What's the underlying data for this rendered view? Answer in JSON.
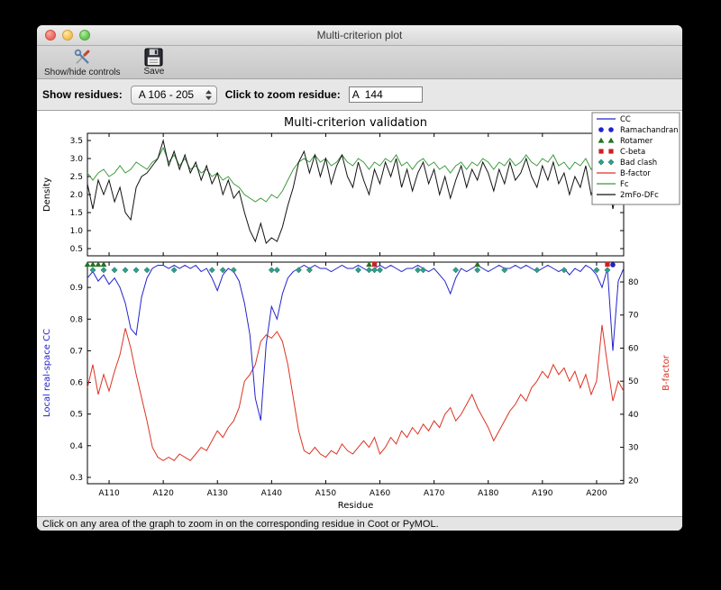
{
  "window": {
    "title": "Multi-criterion plot"
  },
  "toolbar": {
    "show_hide_label": "Show/hide controls",
    "save_label": "Save"
  },
  "controls": {
    "show_residues_label": "Show residues:",
    "residue_range": "A 106 - 205",
    "zoom_label": "Click to zoom residue:",
    "zoom_value": "A  144"
  },
  "status": "Click on any area of the graph to zoom in on the corresponding residue in Coot or PyMOL.",
  "icons": {
    "show_hide": "tools-icon",
    "save": "floppy-disk-icon",
    "combo": "stepper-arrows-icon"
  },
  "chart_data": {
    "type": "line",
    "title": "Multi-criterion validation",
    "xlabel": "Residue",
    "x_range": [
      106,
      205
    ],
    "x_ticks": [
      "A110",
      "A120",
      "A130",
      "A140",
      "A150",
      "A160",
      "A170",
      "A180",
      "A190",
      "A200"
    ],
    "x_tick_values": [
      110,
      120,
      130,
      140,
      150,
      160,
      170,
      180,
      190,
      200
    ],
    "top_panel": {
      "ylabel": "Density",
      "ylim": [
        0.3,
        3.7
      ],
      "yticks": [
        0.5,
        1.0,
        1.5,
        2.0,
        2.5,
        3.0,
        3.5
      ],
      "series": [
        {
          "name": "Fc",
          "color": "#3c9a3c",
          "values": [
            2.6,
            2.4,
            2.6,
            2.7,
            2.5,
            2.6,
            2.8,
            2.6,
            2.7,
            2.9,
            2.8,
            2.7,
            2.9,
            3.0,
            3.3,
            2.9,
            3.1,
            2.8,
            3.0,
            2.7,
            2.8,
            2.6,
            2.7,
            2.5,
            2.6,
            2.4,
            2.5,
            2.3,
            2.2,
            2.0,
            1.9,
            1.8,
            1.9,
            1.8,
            2.0,
            1.9,
            2.1,
            2.4,
            2.7,
            2.9,
            3.0,
            2.9,
            3.1,
            2.9,
            3.0,
            2.8,
            2.9,
            3.1,
            2.9,
            2.8,
            3.0,
            2.9,
            2.7,
            2.9,
            2.8,
            3.0,
            2.9,
            3.1,
            2.8,
            2.9,
            2.7,
            2.9,
            3.0,
            2.8,
            2.9,
            2.7,
            2.8,
            2.6,
            2.8,
            2.9,
            2.7,
            2.9,
            2.8,
            3.0,
            2.9,
            2.7,
            2.9,
            2.8,
            3.0,
            2.8,
            2.9,
            3.1,
            2.9,
            2.8,
            3.0,
            2.9,
            3.1,
            2.8,
            2.9,
            2.7,
            2.9,
            2.8,
            3.0,
            2.7,
            2.9,
            2.8,
            3.3,
            2.6,
            2.9,
            3.0
          ]
        },
        {
          "name": "2mFo-DFc",
          "color": "#111111",
          "values": [
            2.3,
            1.6,
            2.4,
            2.0,
            2.4,
            1.8,
            2.2,
            1.5,
            1.3,
            2.2,
            2.5,
            2.6,
            2.8,
            3.0,
            3.5,
            2.8,
            3.2,
            2.7,
            3.1,
            2.6,
            2.9,
            2.4,
            2.8,
            2.3,
            2.6,
            2.0,
            2.4,
            1.9,
            2.1,
            1.5,
            1.0,
            0.7,
            1.2,
            0.65,
            0.8,
            0.7,
            1.1,
            1.7,
            2.2,
            2.9,
            3.2,
            2.6,
            3.1,
            2.5,
            3.0,
            2.3,
            2.8,
            3.1,
            2.5,
            2.2,
            2.9,
            2.4,
            2.0,
            2.7,
            2.3,
            2.9,
            2.5,
            3.0,
            2.2,
            2.7,
            2.1,
            2.6,
            2.9,
            2.3,
            2.7,
            2.0,
            2.5,
            1.9,
            2.4,
            2.8,
            2.2,
            2.7,
            2.4,
            2.9,
            2.6,
            2.1,
            2.7,
            2.3,
            2.9,
            2.4,
            2.6,
            3.0,
            2.5,
            2.2,
            2.8,
            2.4,
            2.9,
            2.3,
            2.6,
            2.0,
            2.5,
            2.2,
            2.8,
            2.0,
            2.4,
            2.1,
            2.6,
            1.6,
            2.3,
            2.5
          ]
        }
      ]
    },
    "bottom_panel": {
      "left_ylabel": "Local real-space CC",
      "left_color": "#2222cc",
      "left_ylim": [
        0.28,
        0.98
      ],
      "left_yticks": [
        0.3,
        0.4,
        0.5,
        0.6,
        0.7,
        0.8,
        0.9
      ],
      "right_ylabel": "B-factor",
      "right_color": "#dd3322",
      "right_ylim": [
        19,
        86
      ],
      "right_yticks": [
        20,
        30,
        40,
        50,
        60,
        70,
        80
      ],
      "cc_values": [
        0.93,
        0.95,
        0.92,
        0.94,
        0.91,
        0.93,
        0.9,
        0.85,
        0.77,
        0.75,
        0.87,
        0.93,
        0.96,
        0.97,
        0.97,
        0.96,
        0.97,
        0.96,
        0.97,
        0.96,
        0.97,
        0.95,
        0.96,
        0.93,
        0.89,
        0.94,
        0.96,
        0.95,
        0.92,
        0.85,
        0.75,
        0.55,
        0.48,
        0.72,
        0.84,
        0.8,
        0.88,
        0.93,
        0.95,
        0.96,
        0.97,
        0.96,
        0.97,
        0.96,
        0.96,
        0.95,
        0.96,
        0.97,
        0.96,
        0.96,
        0.97,
        0.96,
        0.95,
        0.96,
        0.97,
        0.96,
        0.97,
        0.96,
        0.95,
        0.96,
        0.96,
        0.97,
        0.96,
        0.95,
        0.96,
        0.94,
        0.92,
        0.88,
        0.93,
        0.96,
        0.95,
        0.96,
        0.97,
        0.96,
        0.95,
        0.96,
        0.97,
        0.96,
        0.96,
        0.97,
        0.96,
        0.97,
        0.96,
        0.95,
        0.96,
        0.97,
        0.96,
        0.95,
        0.96,
        0.94,
        0.96,
        0.95,
        0.97,
        0.96,
        0.94,
        0.9,
        0.96,
        0.7,
        0.92,
        0.96
      ],
      "b_values": [
        48,
        55,
        46,
        52,
        47,
        53,
        58,
        66,
        60,
        52,
        45,
        38,
        30,
        27,
        26,
        27,
        26,
        28,
        27,
        26,
        28,
        30,
        29,
        32,
        35,
        33,
        36,
        38,
        42,
        50,
        52,
        55,
        62,
        64,
        63,
        65,
        62,
        55,
        45,
        35,
        29,
        28,
        30,
        28,
        27,
        29,
        28,
        31,
        29,
        28,
        30,
        32,
        30,
        33,
        28,
        30,
        33,
        31,
        35,
        33,
        36,
        34,
        37,
        35,
        38,
        36,
        40,
        42,
        38,
        40,
        43,
        46,
        42,
        39,
        36,
        32,
        35,
        38,
        41,
        43,
        46,
        44,
        48,
        50,
        53,
        51,
        55,
        52,
        54,
        50,
        53,
        48,
        52,
        46,
        50,
        67,
        55,
        44,
        50,
        47
      ],
      "markers": {
        "bad_clash": {
          "shape": "diamond",
          "color": "#2f9e8a",
          "residues": [
            107,
            109,
            111,
            113,
            115,
            117,
            122,
            129,
            131,
            133,
            140,
            141,
            145,
            147,
            156,
            158,
            159,
            160,
            167,
            168,
            174,
            178,
            183,
            189,
            194,
            200,
            202
          ]
        },
        "rotamer": {
          "shape": "triangle",
          "color": "#267326",
          "residues": [
            106,
            107,
            108,
            109,
            158,
            178
          ]
        },
        "c_beta": {
          "shape": "square",
          "color": "#cc2222",
          "residues": [
            159,
            202
          ]
        },
        "ramachandran": {
          "shape": "circle",
          "color": "#2222cc",
          "residues": [
            203
          ]
        }
      }
    },
    "legend": [
      {
        "label": "CC",
        "type": "line",
        "color": "#2222cc"
      },
      {
        "label": "Ramachandran",
        "type": "circle",
        "color": "#2222cc"
      },
      {
        "label": "Rotamer",
        "type": "triangle",
        "color": "#267326"
      },
      {
        "label": "C-beta",
        "type": "square",
        "color": "#cc2222"
      },
      {
        "label": "Bad clash",
        "type": "diamond",
        "color": "#2f9e8a"
      },
      {
        "label": "B-factor",
        "type": "line",
        "color": "#dd3322"
      },
      {
        "label": "Fc",
        "type": "line",
        "color": "#3c9a3c"
      },
      {
        "label": "2mFo-DFc",
        "type": "line",
        "color": "#111111"
      }
    ]
  }
}
